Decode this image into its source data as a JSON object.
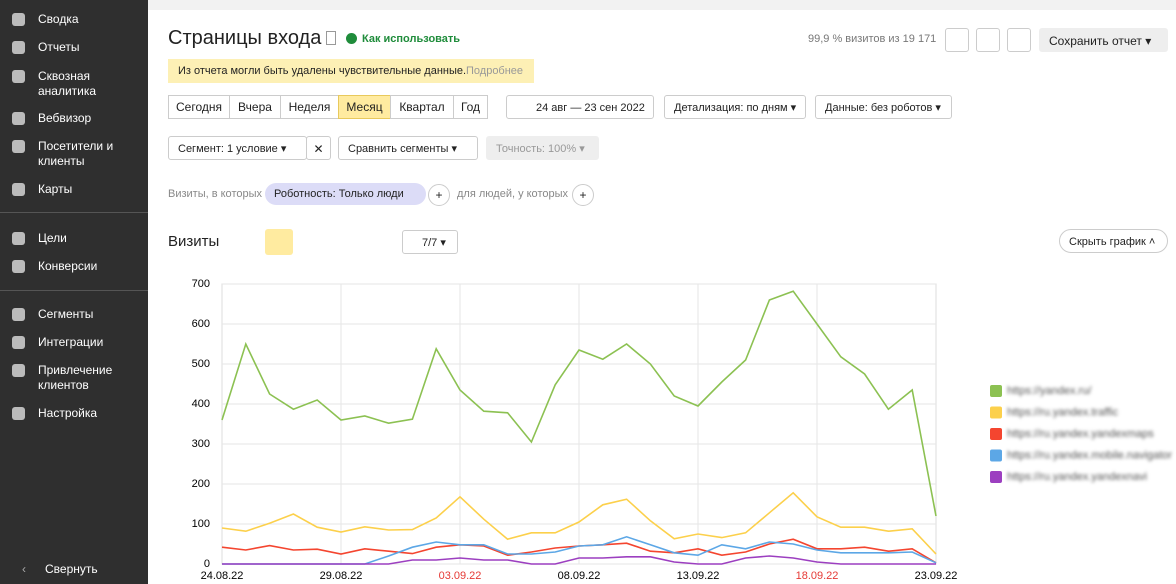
{
  "sidebar": {
    "items": [
      "Сводка",
      "Отчеты",
      "Сквозная аналитика",
      "Вебвизор",
      "Посетители и клиенты",
      "Карты",
      "Цели",
      "Конверсии",
      "Сегменты",
      "Интеграции",
      "Привлечение клиентов",
      "Настройка"
    ],
    "collapse": "Свернуть"
  },
  "header": {
    "title": "Страницы входа",
    "help": "Как использовать",
    "stats": "99,9 % визитов из 19 171",
    "save": "Сохранить отчет"
  },
  "notice": {
    "text": "Из отчета могли быть удалены чувствительные данные.",
    "link": "Подробнее"
  },
  "periods": [
    "Сегодня",
    "Вчера",
    "Неделя",
    "Месяц",
    "Квартал",
    "Год"
  ],
  "date_range": "24 авг — 23 сен 2022",
  "detail": "Детализация: по дням",
  "data_filter": "Данные: без роботов",
  "segment": "Сегмент: 1 условие",
  "compare": "Сравнить сегменты",
  "accuracy": "Точность: 100%",
  "filter": {
    "prefix": "Визиты, в которых",
    "chip": "Роботность: Только люди",
    "suffix": "для людей, у которых"
  },
  "chart_header": {
    "title": "Визиты",
    "series_count": "7/7",
    "hide": "Скрыть график"
  },
  "chart_data": {
    "type": "line",
    "categories": [
      "24.08.22",
      null,
      null,
      null,
      null,
      "29.08.22",
      null,
      null,
      null,
      null,
      "03.09.22",
      null,
      null,
      null,
      null,
      "08.09.22",
      null,
      null,
      null,
      null,
      "13.09.22",
      null,
      null,
      null,
      null,
      "18.09.22",
      null,
      null,
      null,
      null,
      "23.09.22"
    ],
    "ylim": [
      0,
      700
    ],
    "yticks": [
      0,
      100,
      200,
      300,
      400,
      500,
      600,
      700
    ],
    "grid": true,
    "legend": "right",
    "series": [
      {
        "name": "https://yandex.ru/",
        "color": "#8cc152",
        "values": [
          360,
          550,
          425,
          387,
          410,
          360,
          370,
          352,
          362,
          538,
          435,
          382,
          378,
          305,
          448,
          535,
          512,
          550,
          500,
          420,
          395,
          455,
          510,
          660,
          682,
          600,
          518,
          475,
          387,
          435,
          120
        ]
      },
      {
        "name": "https://ru.yandex.traffic",
        "color": "#fcd04b",
        "values": [
          90,
          82,
          102,
          125,
          92,
          80,
          93,
          85,
          86,
          115,
          168,
          112,
          62,
          78,
          78,
          105,
          148,
          162,
          108,
          63,
          75,
          66,
          78,
          128,
          178,
          118,
          92,
          92,
          82,
          88,
          25
        ]
      },
      {
        "name": "https://ru.yandex.yandexmaps",
        "color": "#f4452f",
        "values": [
          42,
          35,
          46,
          35,
          37,
          25,
          38,
          32,
          26,
          42,
          48,
          45,
          22,
          30,
          40,
          45,
          48,
          52,
          32,
          28,
          38,
          22,
          30,
          50,
          62,
          38,
          38,
          42,
          32,
          38,
          3
        ]
      },
      {
        "name": "https://ru.yandex.mobile.navigator",
        "color": "#5ca7e6",
        "values": [
          0,
          0,
          0,
          0,
          0,
          0,
          0,
          20,
          42,
          55,
          48,
          48,
          25,
          25,
          30,
          45,
          48,
          68,
          48,
          28,
          22,
          48,
          38,
          55,
          50,
          35,
          28,
          28,
          28,
          30,
          3
        ]
      },
      {
        "name": "https://ru.yandex.yandexnavi",
        "color": "#9c3fc0",
        "values": [
          0,
          0,
          0,
          0,
          0,
          0,
          0,
          0,
          10,
          10,
          15,
          10,
          10,
          0,
          0,
          15,
          15,
          18,
          18,
          5,
          0,
          0,
          15,
          20,
          15,
          5,
          0,
          0,
          0,
          0,
          0
        ]
      }
    ]
  }
}
